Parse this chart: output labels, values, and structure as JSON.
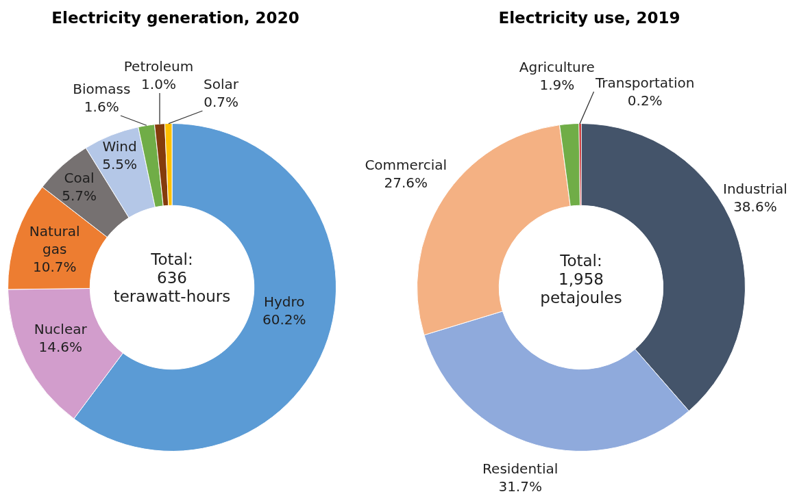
{
  "chart_data": [
    {
      "type": "donut",
      "title": "Electricity generation, 2020",
      "categories": [
        "Hydro",
        "Nuclear",
        "Natural gas",
        "Coal",
        "Wind",
        "Biomass",
        "Petroleum",
        "Solar"
      ],
      "values": [
        60.2,
        14.6,
        10.7,
        5.7,
        5.5,
        1.6,
        1.0,
        0.7
      ],
      "colors": [
        "#5b9bd5",
        "#d29dcc",
        "#ed7d31",
        "#767171",
        "#b4c7e7",
        "#70ad47",
        "#843c0c",
        "#ffc000"
      ],
      "value_labels": [
        "60.2%",
        "14.6%",
        "10.7%",
        "5.7%",
        "5.5%",
        "1.6%",
        "1.0%",
        "0.7%"
      ],
      "annotations": [
        "Total: 636 terawatt-hours"
      ]
    },
    {
      "type": "donut",
      "title": "Electricity use, 2019",
      "categories": [
        "Industrial",
        "Residential",
        "Commercial",
        "Agriculture",
        "Transportation"
      ],
      "values": [
        38.6,
        31.7,
        27.6,
        1.9,
        0.2
      ],
      "colors": [
        "#44546a",
        "#8faadc",
        "#f4b183",
        "#70ad47",
        "#c00000"
      ],
      "value_labels": [
        "38.6%",
        "31.7%",
        "27.6%",
        "1.9%",
        "0.2%"
      ],
      "annotations": [
        "Total: 1,958 petajoules"
      ]
    }
  ]
}
